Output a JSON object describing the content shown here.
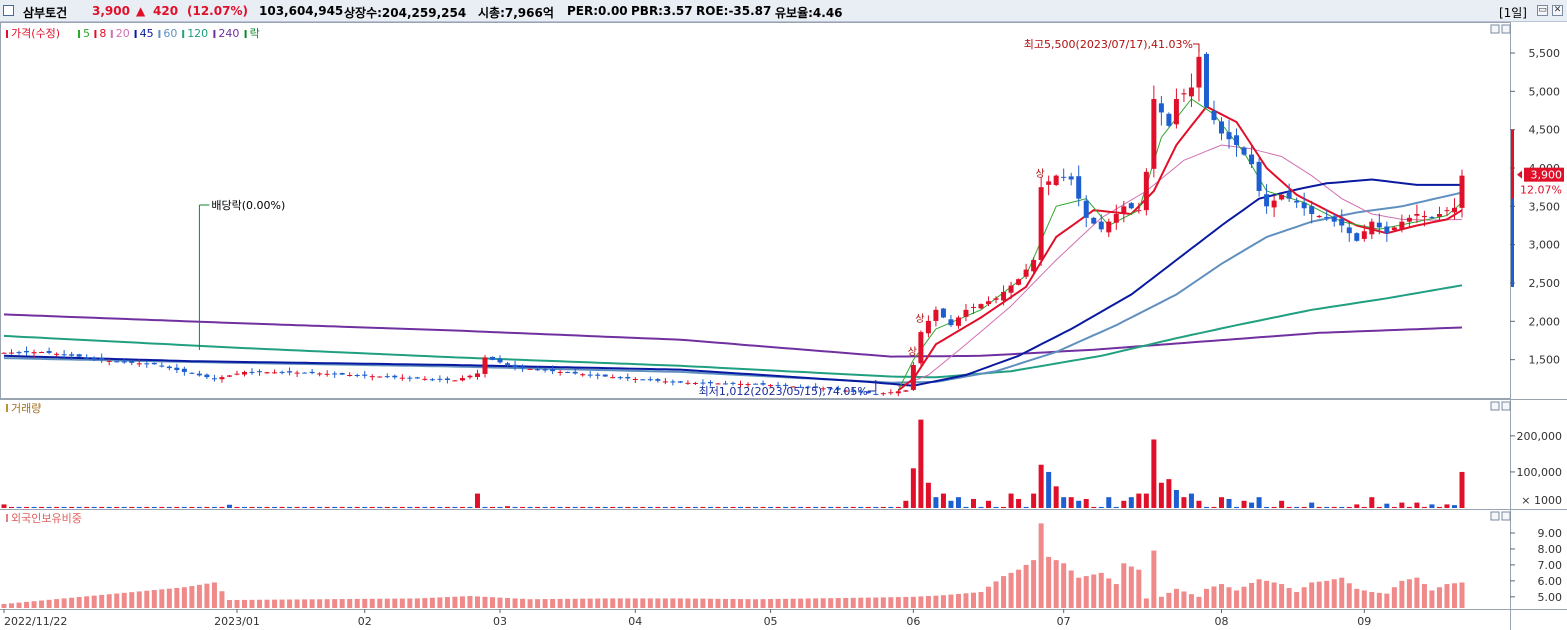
{
  "header": {
    "stock_name": "삼부토건",
    "price": "3,900",
    "change_arrow": "▲",
    "change": "420",
    "change_pct": "(12.07%)",
    "volume": "103,604,945",
    "listed_shares": "상장수:204,259,254",
    "market_cap": "시총:7,966억",
    "per": "PER:0.00",
    "pbr": "PBR:3.57",
    "roe": "ROE:-35.87",
    "float_ratio": "유보율:4.46",
    "timeframe": "[1일]",
    "colors": {
      "up": "#e0102a",
      "down": "#1d5fd0",
      "accent": "#000000"
    }
  },
  "chart_data": [
    {
      "type": "candlestick",
      "title": "",
      "legend": [
        {
          "label": "가격(수정)",
          "color": "#e0102a"
        },
        {
          "label": "5",
          "color": "#2fa82f"
        },
        {
          "label": "8",
          "color": "#e0102a"
        },
        {
          "label": "20",
          "color": "#d070b0"
        },
        {
          "label": "45",
          "color": "#0a1aa0"
        },
        {
          "label": "60",
          "color": "#6090c0"
        },
        {
          "label": "120",
          "color": "#20a080"
        },
        {
          "label": "240",
          "color": "#7030a0"
        },
        {
          "label": "락",
          "color": "#0a8a2a"
        }
      ],
      "x": [
        "2022/11/22",
        "2023/01",
        "02",
        "03",
        "04",
        "05",
        "06",
        "07",
        "08",
        "09"
      ],
      "yticks": [
        "5,500",
        "5,000",
        "4,500",
        "4,000",
        "3,500",
        "3,000",
        "2,500",
        "2,000",
        "1,500"
      ],
      "ylim": [
        1000,
        5800
      ],
      "current_price_label": "3,900",
      "current_change_label": "12.07%",
      "annotations": {
        "high": "최고5,500(2023/07/17),41.03%",
        "low": "최저1,012(2023/05/15),74.05%",
        "dividend": "배당락(0.00%)",
        "upper_limit_marks": [
          "상",
          "상",
          "상"
        ]
      },
      "anchors": [
        {
          "i": 0,
          "p": 1590
        },
        {
          "i": 5,
          "p": 1600
        },
        {
          "i": 10,
          "p": 1540
        },
        {
          "i": 15,
          "p": 1470
        },
        {
          "i": 20,
          "p": 1440
        },
        {
          "i": 24,
          "p": 1340
        },
        {
          "i": 28,
          "p": 1250
        },
        {
          "i": 32,
          "p": 1340
        },
        {
          "i": 40,
          "p": 1330
        },
        {
          "i": 50,
          "p": 1280
        },
        {
          "i": 60,
          "p": 1230
        },
        {
          "i": 63,
          "p": 1320
        },
        {
          "i": 64,
          "p": 1530
        },
        {
          "i": 68,
          "p": 1400
        },
        {
          "i": 80,
          "p": 1280
        },
        {
          "i": 90,
          "p": 1200
        },
        {
          "i": 100,
          "p": 1180
        },
        {
          "i": 110,
          "p": 1120
        },
        {
          "i": 116,
          "p": 1050
        },
        {
          "i": 120,
          "p": 1100
        },
        {
          "i": 121,
          "p": 1430
        },
        {
          "i": 122,
          "p": 1860
        },
        {
          "i": 124,
          "p": 2150
        },
        {
          "i": 126,
          "p": 1950
        },
        {
          "i": 128,
          "p": 2150
        },
        {
          "i": 132,
          "p": 2300
        },
        {
          "i": 135,
          "p": 2550
        },
        {
          "i": 137,
          "p": 2800
        },
        {
          "i": 138,
          "p": 3750
        },
        {
          "i": 140,
          "p": 3900
        },
        {
          "i": 142,
          "p": 3850
        },
        {
          "i": 144,
          "p": 3350
        },
        {
          "i": 146,
          "p": 3200
        },
        {
          "i": 149,
          "p": 3500
        },
        {
          "i": 151,
          "p": 3450
        },
        {
          "i": 152,
          "p": 3950
        },
        {
          "i": 153,
          "p": 4900
        },
        {
          "i": 155,
          "p": 4550
        },
        {
          "i": 156,
          "p": 4900
        },
        {
          "i": 158,
          "p": 5050
        },
        {
          "i": 159,
          "p": 5450
        },
        {
          "i": 160,
          "p": 4800
        },
        {
          "i": 162,
          "p": 4450
        },
        {
          "i": 164,
          "p": 4300
        },
        {
          "i": 166,
          "p": 4050
        },
        {
          "i": 167,
          "p": 3700
        },
        {
          "i": 168,
          "p": 3500
        },
        {
          "i": 170,
          "p": 3650
        },
        {
          "i": 172,
          "p": 3550
        },
        {
          "i": 174,
          "p": 3400
        },
        {
          "i": 176,
          "p": 3350
        },
        {
          "i": 178,
          "p": 3250
        },
        {
          "i": 180,
          "p": 3050
        },
        {
          "i": 182,
          "p": 3300
        },
        {
          "i": 184,
          "p": 3150
        },
        {
          "i": 186,
          "p": 3300
        },
        {
          "i": 188,
          "p": 3400
        },
        {
          "i": 190,
          "p": 3350
        },
        {
          "i": 192,
          "p": 3450
        },
        {
          "i": 193,
          "p": 3480
        },
        {
          "i": 194,
          "p": 3900
        }
      ],
      "ma_anchors": {
        "5": [
          [
            119,
            1100
          ],
          [
            121,
            1500
          ],
          [
            124,
            1900
          ],
          [
            130,
            2150
          ],
          [
            136,
            2600
          ],
          [
            140,
            3500
          ],
          [
            144,
            3600
          ],
          [
            147,
            3250
          ],
          [
            151,
            3450
          ],
          [
            154,
            4400
          ],
          [
            158,
            4900
          ],
          [
            161,
            4700
          ],
          [
            165,
            4200
          ],
          [
            168,
            3700
          ],
          [
            173,
            3550
          ],
          [
            178,
            3300
          ],
          [
            183,
            3200
          ],
          [
            188,
            3300
          ],
          [
            192,
            3380
          ],
          [
            194,
            3550
          ]
        ],
        "8": [
          [
            119,
            1100
          ],
          [
            121,
            1250
          ],
          [
            124,
            1700
          ],
          [
            130,
            2050
          ],
          [
            136,
            2450
          ],
          [
            140,
            3100
          ],
          [
            145,
            3450
          ],
          [
            150,
            3400
          ],
          [
            153,
            3700
          ],
          [
            156,
            4300
          ],
          [
            160,
            4800
          ],
          [
            164,
            4600
          ],
          [
            168,
            4000
          ],
          [
            172,
            3650
          ],
          [
            176,
            3450
          ],
          [
            180,
            3250
          ],
          [
            184,
            3150
          ],
          [
            188,
            3250
          ],
          [
            192,
            3330
          ],
          [
            194,
            3450
          ]
        ],
        "20": [
          [
            119,
            1150
          ],
          [
            123,
            1300
          ],
          [
            128,
            1700
          ],
          [
            134,
            2200
          ],
          [
            140,
            2800
          ],
          [
            146,
            3350
          ],
          [
            152,
            3700
          ],
          [
            157,
            4100
          ],
          [
            162,
            4300
          ],
          [
            166,
            4250
          ],
          [
            170,
            4150
          ],
          [
            174,
            3900
          ],
          [
            178,
            3600
          ],
          [
            182,
            3400
          ],
          [
            186,
            3330
          ],
          [
            190,
            3320
          ],
          [
            194,
            3330
          ]
        ],
        "45": [
          [
            0,
            1550
          ],
          [
            25,
            1480
          ],
          [
            60,
            1430
          ],
          [
            90,
            1370
          ],
          [
            115,
            1210
          ],
          [
            121,
            1160
          ],
          [
            128,
            1300
          ],
          [
            135,
            1550
          ],
          [
            142,
            1900
          ],
          [
            150,
            2350
          ],
          [
            156,
            2800
          ],
          [
            162,
            3250
          ],
          [
            167,
            3600
          ],
          [
            172,
            3720
          ],
          [
            176,
            3800
          ],
          [
            182,
            3850
          ],
          [
            188,
            3780
          ],
          [
            194,
            3780
          ]
        ],
        "60": [
          [
            0,
            1520
          ],
          [
            30,
            1460
          ],
          [
            60,
            1410
          ],
          [
            90,
            1340
          ],
          [
            118,
            1200
          ],
          [
            124,
            1210
          ],
          [
            132,
            1350
          ],
          [
            140,
            1600
          ],
          [
            148,
            1950
          ],
          [
            156,
            2350
          ],
          [
            162,
            2750
          ],
          [
            168,
            3100
          ],
          [
            174,
            3300
          ],
          [
            180,
            3420
          ],
          [
            186,
            3500
          ],
          [
            194,
            3680
          ]
        ],
        "120": [
          [
            0,
            1810
          ],
          [
            30,
            1660
          ],
          [
            60,
            1530
          ],
          [
            90,
            1420
          ],
          [
            118,
            1280
          ],
          [
            124,
            1270
          ],
          [
            134,
            1350
          ],
          [
            146,
            1550
          ],
          [
            156,
            1780
          ],
          [
            164,
            1950
          ],
          [
            174,
            2150
          ],
          [
            184,
            2300
          ],
          [
            194,
            2470
          ]
        ],
        "240": [
          [
            0,
            2090
          ],
          [
            30,
            1980
          ],
          [
            60,
            1880
          ],
          [
            90,
            1760
          ],
          [
            118,
            1540
          ],
          [
            130,
            1550
          ],
          [
            145,
            1630
          ],
          [
            160,
            1740
          ],
          [
            175,
            1850
          ],
          [
            194,
            1920
          ]
        ]
      }
    },
    {
      "type": "bar",
      "title": "거래량",
      "yticks": [
        "200,000",
        "100,000"
      ],
      "unit_label": "× 1000",
      "ylim": [
        0,
        280000
      ],
      "values": [
        [
          0,
          10000,
          1
        ],
        [
          30,
          9000,
          0
        ],
        [
          63,
          40000,
          1
        ],
        [
          67,
          5000,
          1
        ],
        [
          120,
          20000,
          1
        ],
        [
          121,
          110000,
          1
        ],
        [
          122,
          245000,
          1
        ],
        [
          123,
          70000,
          1
        ],
        [
          124,
          30000,
          0
        ],
        [
          125,
          40000,
          1
        ],
        [
          126,
          20000,
          0
        ],
        [
          127,
          30000,
          0
        ],
        [
          129,
          25000,
          1
        ],
        [
          131,
          20000,
          1
        ],
        [
          134,
          40000,
          1
        ],
        [
          135,
          25000,
          1
        ],
        [
          137,
          40000,
          1
        ],
        [
          138,
          120000,
          1
        ],
        [
          139,
          100000,
          0
        ],
        [
          140,
          60000,
          1
        ],
        [
          141,
          30000,
          0
        ],
        [
          142,
          30000,
          1
        ],
        [
          143,
          20000,
          0
        ],
        [
          144,
          25000,
          1
        ],
        [
          147,
          30000,
          0
        ],
        [
          149,
          20000,
          1
        ],
        [
          150,
          30000,
          0
        ],
        [
          151,
          40000,
          1
        ],
        [
          152,
          40000,
          1
        ],
        [
          153,
          190000,
          1
        ],
        [
          154,
          70000,
          1
        ],
        [
          155,
          80000,
          1
        ],
        [
          156,
          50000,
          0
        ],
        [
          157,
          30000,
          1
        ],
        [
          158,
          40000,
          0
        ],
        [
          159,
          20000,
          1
        ],
        [
          162,
          30000,
          1
        ],
        [
          163,
          25000,
          0
        ],
        [
          165,
          20000,
          1
        ],
        [
          166,
          15000,
          0
        ],
        [
          167,
          30000,
          0
        ],
        [
          170,
          20000,
          1
        ],
        [
          174,
          15000,
          0
        ],
        [
          180,
          10000,
          1
        ],
        [
          182,
          30000,
          1
        ],
        [
          184,
          12000,
          0
        ],
        [
          186,
          15000,
          1
        ],
        [
          188,
          15000,
          1
        ],
        [
          190,
          10000,
          0
        ],
        [
          192,
          10000,
          1
        ],
        [
          193,
          8000,
          0
        ],
        [
          194,
          100000,
          1
        ]
      ]
    },
    {
      "type": "bar",
      "title": "외국인보유비중",
      "yticks": [
        "9.00",
        "8.00",
        "7.00",
        "6.00",
        "5.00"
      ],
      "ylim": [
        4.3,
        10.0
      ],
      "values": [
        [
          0,
          4.55
        ],
        [
          24,
          5.6
        ],
        [
          28,
          5.9
        ],
        [
          30,
          4.8
        ],
        [
          55,
          4.9
        ],
        [
          62,
          5.05
        ],
        [
          70,
          4.85
        ],
        [
          80,
          4.9
        ],
        [
          90,
          4.9
        ],
        [
          100,
          4.85
        ],
        [
          115,
          4.95
        ],
        [
          121,
          5.0
        ],
        [
          125,
          5.1
        ],
        [
          130,
          5.3
        ],
        [
          133,
          6.3
        ],
        [
          135,
          6.7
        ],
        [
          137,
          7.3
        ],
        [
          138,
          9.6
        ],
        [
          139,
          7.5
        ],
        [
          141,
          7.1
        ],
        [
          143,
          6.2
        ],
        [
          146,
          6.5
        ],
        [
          148,
          5.8
        ],
        [
          149,
          7.1
        ],
        [
          151,
          6.7
        ],
        [
          152,
          4.9
        ],
        [
          153,
          7.9
        ],
        [
          154,
          5.0
        ],
        [
          156,
          5.5
        ],
        [
          159,
          5.0
        ],
        [
          160,
          5.5
        ],
        [
          162,
          5.8
        ],
        [
          164,
          5.4
        ],
        [
          167,
          6.1
        ],
        [
          170,
          5.8
        ],
        [
          172,
          5.3
        ],
        [
          174,
          5.9
        ],
        [
          176,
          6.0
        ],
        [
          178,
          6.2
        ],
        [
          180,
          5.5
        ],
        [
          182,
          5.3
        ],
        [
          184,
          5.2
        ],
        [
          186,
          6.0
        ],
        [
          188,
          6.2
        ],
        [
          190,
          5.4
        ],
        [
          192,
          5.8
        ],
        [
          194,
          5.9
        ]
      ]
    }
  ]
}
